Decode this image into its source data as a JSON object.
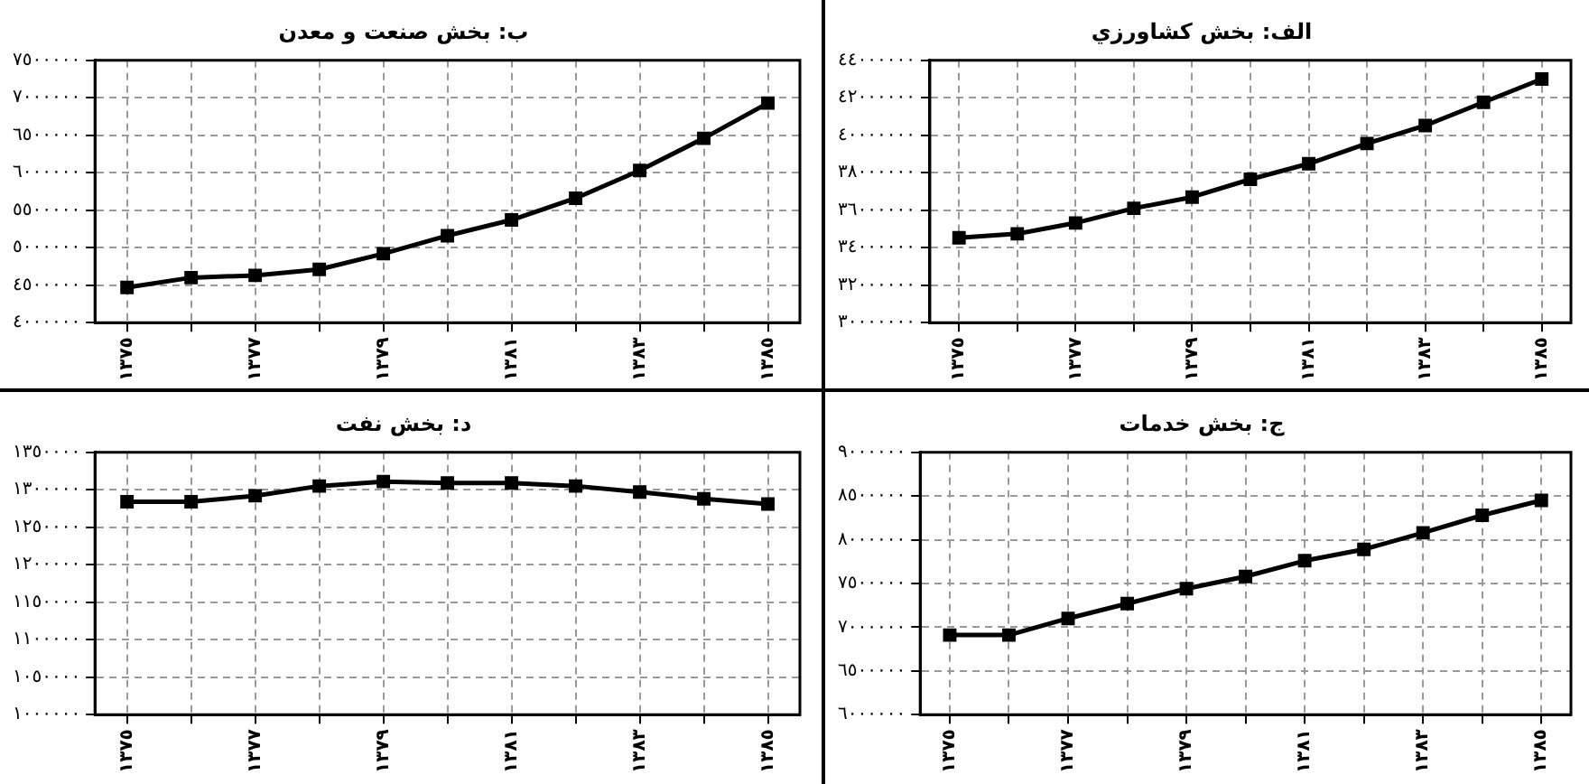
{
  "chart_data": [
    {
      "type": "line",
      "title": "الف: بخش كشاورزي",
      "categories": [
        "١٣٧٥",
        null,
        "١٣٧٧",
        null,
        "١٣٧٩",
        null,
        "١٣٨١",
        null,
        "١٣٨٣",
        null,
        "١٣٨٥"
      ],
      "series": [
        {
          "color": "#000000",
          "values": [
            34530000,
            34740000,
            35320000,
            36100000,
            36700000,
            37650000,
            38480000,
            39560000,
            40520000,
            41760000,
            43000000
          ]
        }
      ],
      "ylim": [
        30000000,
        44000000
      ],
      "yticks": [
        {
          "value": 30000000,
          "label": "٣٠٠٠٠٠٠٠"
        },
        {
          "value": 32000000,
          "label": "٣٢٠٠٠٠٠٠"
        },
        {
          "value": 34000000,
          "label": "٣٤٠٠٠٠٠٠"
        },
        {
          "value": 36000000,
          "label": "٣٦٠٠٠٠٠٠"
        },
        {
          "value": 38000000,
          "label": "٣٨٠٠٠٠٠٠"
        },
        {
          "value": 40000000,
          "label": "٤٠٠٠٠٠٠٠"
        },
        {
          "value": 42000000,
          "label": "٤٢٠٠٠٠٠٠"
        },
        {
          "value": 44000000,
          "label": "٤٤٠٠٠٠٠٠"
        }
      ],
      "grid": true,
      "legend": false,
      "marker": "square",
      "line_style": "solid"
    },
    {
      "type": "line",
      "title": "ب: بخش صنعت و معدن",
      "categories": [
        "١٣٧٥",
        null,
        "١٣٧٧",
        null,
        "١٣٧٩",
        null,
        "١٣٨١",
        null,
        "١٣٨٣",
        null,
        "١٣٨٥"
      ],
      "series": [
        {
          "color": "#000000",
          "values": [
            4470000,
            4600000,
            4630000,
            4710000,
            4920000,
            5160000,
            5370000,
            5660000,
            6030000,
            6460000,
            6930000
          ]
        }
      ],
      "ylim": [
        4000000,
        7500000
      ],
      "yticks": [
        {
          "value": 4000000,
          "label": "٤٠٠٠٠٠٠"
        },
        {
          "value": 4500000,
          "label": "٤٥٠٠٠٠٠"
        },
        {
          "value": 5000000,
          "label": "٥٠٠٠٠٠٠"
        },
        {
          "value": 5500000,
          "label": "٥٥٠٠٠٠٠"
        },
        {
          "value": 6000000,
          "label": "٦٠٠٠٠٠٠"
        },
        {
          "value": 6500000,
          "label": "٦٥٠٠٠٠٠"
        },
        {
          "value": 7000000,
          "label": "٧٠٠٠٠٠٠"
        },
        {
          "value": 7500000,
          "label": "٧٥٠٠٠٠٠"
        }
      ],
      "grid": true,
      "legend": false,
      "marker": "square",
      "line_style": "solid"
    },
    {
      "type": "line",
      "title": "ج: بخش خدمات",
      "categories": [
        "١٣٧٥",
        null,
        "١٣٧٧",
        null,
        "١٣٧٩",
        null,
        "١٣٨١",
        null,
        "١٣٨٣",
        null,
        "١٣٨٥"
      ],
      "series": [
        {
          "color": "#000000",
          "values": [
            6910000,
            6910000,
            7100000,
            7270000,
            7440000,
            7580000,
            7760000,
            7890000,
            8080000,
            8280000,
            8450000
          ]
        }
      ],
      "ylim": [
        6000000,
        9000000
      ],
      "yticks": [
        {
          "value": 6000000,
          "label": "٦٠٠٠٠٠٠"
        },
        {
          "value": 6500000,
          "label": "٦٥٠٠٠٠٠"
        },
        {
          "value": 7000000,
          "label": "٧٠٠٠٠٠٠"
        },
        {
          "value": 7500000,
          "label": "٧٥٠٠٠٠٠"
        },
        {
          "value": 8000000,
          "label": "٨٠٠٠٠٠٠"
        },
        {
          "value": 8500000,
          "label": "٨٥٠٠٠٠٠"
        },
        {
          "value": 9000000,
          "label": "٩٠٠٠٠٠٠"
        }
      ],
      "grid": true,
      "legend": false,
      "marker": "square",
      "line_style": "solid"
    },
    {
      "type": "line",
      "title": "د: بخش نفت",
      "categories": [
        "١٣٧٥",
        null,
        "١٣٧٧",
        null,
        "١٣٧٩",
        null,
        "١٣٨١",
        null,
        "١٣٨٣",
        null,
        "١٣٨٥"
      ],
      "series": [
        {
          "color": "#000000",
          "values": [
            1284000,
            1284000,
            1292000,
            1305000,
            1311000,
            1309000,
            1309000,
            1305000,
            1297000,
            1288000,
            1281000
          ]
        }
      ],
      "ylim": [
        1000000,
        1350000
      ],
      "yticks": [
        {
          "value": 1000000,
          "label": "١٠٠٠٠٠٠"
        },
        {
          "value": 1050000,
          "label": "١٠٥٠٠٠٠"
        },
        {
          "value": 1100000,
          "label": "١١٠٠٠٠٠"
        },
        {
          "value": 1150000,
          "label": "١١٥٠٠٠٠"
        },
        {
          "value": 1200000,
          "label": "١٢٠٠٠٠٠"
        },
        {
          "value": 1250000,
          "label": "١٢٥٠٠٠٠"
        },
        {
          "value": 1300000,
          "label": "١٣٠٠٠٠٠"
        },
        {
          "value": 1350000,
          "label": "١٣٥٠٠٠٠"
        }
      ],
      "grid": true,
      "legend": false,
      "marker": "square",
      "line_style": "solid"
    }
  ]
}
